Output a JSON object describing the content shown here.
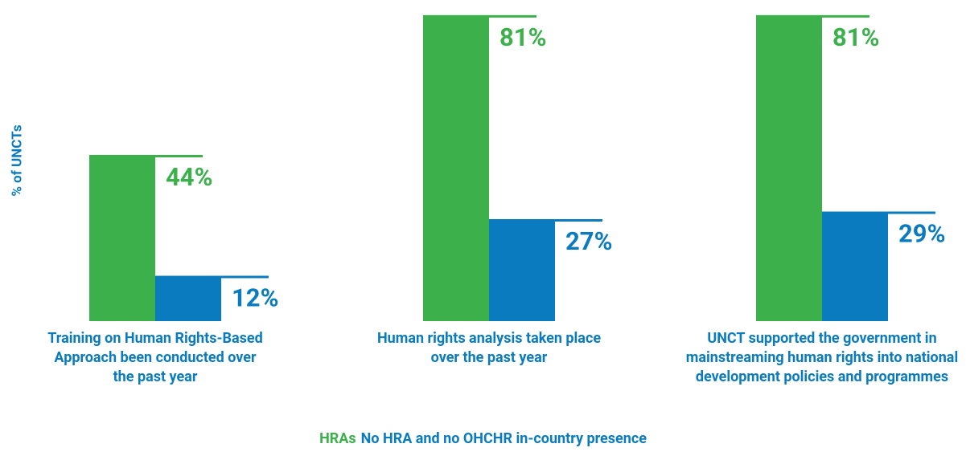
{
  "chart_data": {
    "type": "bar",
    "ylabel": "% of UNCTs",
    "categories": [
      "Training on Human Rights-Based Approach been conducted over the past year",
      "Human rights analysis taken place over the past year",
      "UNCT supported the government in mainstreaming human rights into national development policies and programmes"
    ],
    "series": [
      {
        "name": "HRAs",
        "color": "#3cb04b",
        "values": [
          44,
          81,
          81
        ],
        "value_labels": [
          "44%",
          "81%",
          "81%"
        ]
      },
      {
        "name": "No HRA and no OHCHR in-country presence",
        "color": "#0a7bbf",
        "values": [
          12,
          27,
          29
        ],
        "value_labels": [
          "12%",
          "27%",
          "29%"
        ]
      }
    ],
    "ylim": [
      0,
      85
    ]
  }
}
